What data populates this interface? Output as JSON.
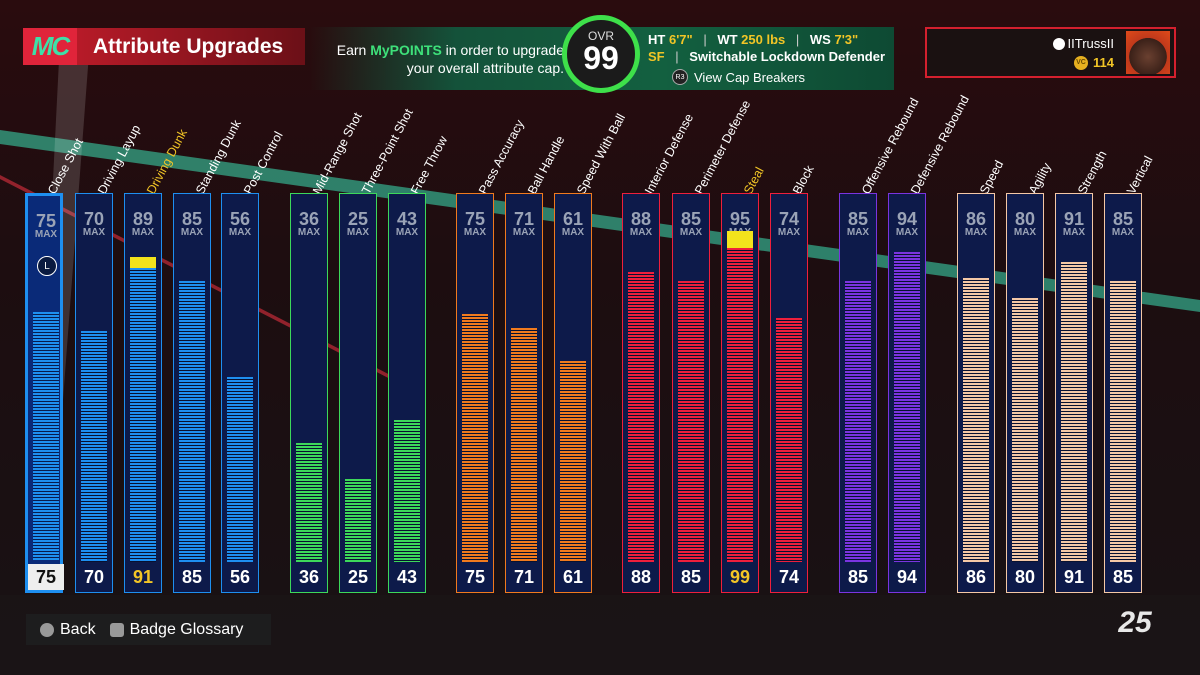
{
  "header": {
    "logo_text": "MC",
    "title": "Attribute Upgrades",
    "earn_pre": "Earn ",
    "earn_highlight": "MyPOINTS",
    "earn_post": " in order to upgrade your overall attribute cap.",
    "ovr_label": "OVR",
    "ovr_value": "99",
    "ht_label": "HT",
    "ht_value": "6'7\"",
    "wt_label": "WT",
    "wt_value": "250 lbs",
    "ws_label": "WS",
    "ws_value": "7'3\"",
    "position": "SF",
    "archetype": "Switchable Lockdown Defender",
    "cap_breakers_icon": "R3",
    "cap_breakers_label": "View Cap Breakers"
  },
  "profile": {
    "username": "IITrussII",
    "vc_icon": "VC",
    "vc_amount": "114"
  },
  "max_label": "MAX",
  "attributes": [
    {
      "name": "Close Shot",
      "cap": "75",
      "value": "75",
      "level": 75,
      "color": "#1e8ff0",
      "group": "blue",
      "selected": true
    },
    {
      "name": "Driving Layup",
      "cap": "70",
      "value": "70",
      "level": 70,
      "color": "#1e8ff0",
      "group": "blue"
    },
    {
      "name": "Driving Dunk",
      "cap": "89",
      "value": "91",
      "level": 89,
      "boost": 91,
      "color": "#1e8ff0",
      "group": "blue",
      "highlight": true
    },
    {
      "name": "Standing Dunk",
      "cap": "85",
      "value": "85",
      "level": 85,
      "color": "#1e8ff0",
      "group": "blue"
    },
    {
      "name": "Post Control",
      "cap": "56",
      "value": "56",
      "level": 56,
      "color": "#1e8ff0",
      "group": "blue"
    },
    {
      "name": "Mid-Range Shot",
      "cap": "36",
      "value": "36",
      "level": 36,
      "color": "#3dd85a",
      "group": "green"
    },
    {
      "name": "Three-Point Shot",
      "cap": "25",
      "value": "25",
      "level": 25,
      "color": "#3dd85a",
      "group": "green"
    },
    {
      "name": "Free Throw",
      "cap": "43",
      "value": "43",
      "level": 43,
      "color": "#3dd85a",
      "group": "green"
    },
    {
      "name": "Pass Accuracy",
      "cap": "75",
      "value": "75",
      "level": 75,
      "color": "#f07a1e",
      "group": "orange"
    },
    {
      "name": "Ball Handle",
      "cap": "71",
      "value": "71",
      "level": 71,
      "color": "#f07a1e",
      "group": "orange"
    },
    {
      "name": "Speed With Ball",
      "cap": "61",
      "value": "61",
      "level": 61,
      "color": "#f07a1e",
      "group": "orange"
    },
    {
      "name": "Interior Defense",
      "cap": "88",
      "value": "88",
      "level": 88,
      "color": "#ee1f3c",
      "group": "red"
    },
    {
      "name": "Perimeter Defense",
      "cap": "85",
      "value": "85",
      "level": 85,
      "color": "#ee1f3c",
      "group": "red"
    },
    {
      "name": "Steal",
      "cap": "95",
      "value": "99",
      "level": 95,
      "boost": 99,
      "color": "#ee1f3c",
      "group": "red",
      "highlight": true
    },
    {
      "name": "Block",
      "cap": "74",
      "value": "74",
      "level": 74,
      "color": "#ee1f3c",
      "group": "red"
    },
    {
      "name": "Offensive Rebound",
      "cap": "85",
      "value": "85",
      "level": 85,
      "color": "#7a34e0",
      "group": "purple"
    },
    {
      "name": "Defensive Rebound",
      "cap": "94",
      "value": "94",
      "level": 94,
      "color": "#7a34e0",
      "group": "purple"
    },
    {
      "name": "Speed",
      "cap": "86",
      "value": "86",
      "level": 86,
      "color": "#f4c8a6",
      "group": "peach"
    },
    {
      "name": "Agility",
      "cap": "80",
      "value": "80",
      "level": 80,
      "color": "#f4c8a6",
      "group": "peach"
    },
    {
      "name": "Strength",
      "cap": "91",
      "value": "91",
      "level": 91,
      "color": "#f4c8a6",
      "group": "peach"
    },
    {
      "name": "Vertical",
      "cap": "85",
      "value": "85",
      "level": 85,
      "color": "#f4c8a6",
      "group": "peach"
    }
  ],
  "selected_icon": "L",
  "footer": {
    "back_label": "Back",
    "glossary_label": "Badge Glossary"
  },
  "brand_mark": "2K25",
  "colors": {
    "accent_red": "#d4202e",
    "accent_green": "#3ee04a",
    "highlight_gold": "#f2c526"
  }
}
